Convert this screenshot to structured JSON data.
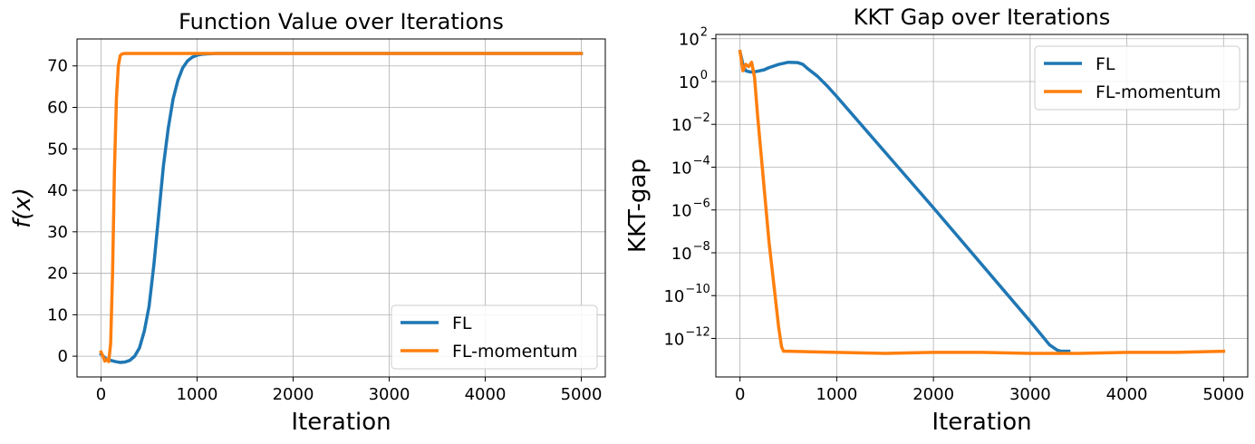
{
  "chart_data": [
    {
      "type": "line",
      "title": "Function Value over Iterations",
      "xlabel": "Iteration",
      "ylabel": "f(x)",
      "xlim": [
        -250,
        5250
      ],
      "ylim": [
        -5,
        76.5
      ],
      "xticks": [
        0,
        1000,
        2000,
        3000,
        4000,
        5000
      ],
      "xtick_labels": [
        "0",
        "1000",
        "2000",
        "3000",
        "4000",
        "5000"
      ],
      "yticks": [
        0,
        10,
        20,
        30,
        40,
        50,
        60,
        70
      ],
      "ytick_labels": [
        "0",
        "10",
        "20",
        "30",
        "40",
        "50",
        "60",
        "70"
      ],
      "grid": true,
      "legend_position": "lower right",
      "series": [
        {
          "name": "FL",
          "color": "#1f77b4",
          "x": [
            0,
            50,
            100,
            150,
            200,
            250,
            300,
            350,
            400,
            450,
            500,
            550,
            600,
            650,
            700,
            750,
            800,
            850,
            900,
            950,
            1000,
            1050,
            1100,
            1200,
            1300,
            1500,
            2000,
            3000,
            4000,
            5000
          ],
          "y": [
            0.5,
            -0.6,
            -1.0,
            -1.3,
            -1.5,
            -1.4,
            -1.0,
            0,
            2,
            6,
            12,
            22,
            34,
            46,
            55,
            62,
            66.5,
            69.5,
            71.2,
            72.1,
            72.6,
            72.8,
            72.9,
            73.0,
            73.0,
            73.0,
            73.0,
            73.0,
            73.0,
            73.0
          ]
        },
        {
          "name": "FL-momentum",
          "color": "#ff7f0e",
          "x": [
            0,
            20,
            40,
            60,
            80,
            100,
            120,
            140,
            160,
            180,
            200,
            220,
            250,
            300,
            500,
            1000,
            2000,
            3000,
            4000,
            5000
          ],
          "y": [
            1.0,
            0,
            -1.2,
            -0.8,
            -1.3,
            3,
            20,
            45,
            62,
            70,
            72.5,
            72.9,
            73.0,
            73.0,
            73.0,
            73.0,
            73.0,
            73.0,
            73.0,
            73.0
          ]
        }
      ]
    },
    {
      "type": "line",
      "title": "KKT Gap over Iterations",
      "xlabel": "Iteration",
      "ylabel": "KKT-gap",
      "yscale": "log",
      "xlim": [
        -250,
        5250
      ],
      "ylim_log10": [
        -13.8,
        2.2
      ],
      "xticks": [
        0,
        1000,
        2000,
        3000,
        4000,
        5000
      ],
      "xtick_labels": [
        "0",
        "1000",
        "2000",
        "3000",
        "4000",
        "5000"
      ],
      "yticks_log10": [
        2,
        0,
        -2,
        -4,
        -6,
        -8,
        -10,
        -12
      ],
      "ytick_labels": [
        "10",
        "10",
        "10",
        "10",
        "10",
        "10",
        "10",
        "10"
      ],
      "ytick_exponents": [
        "2",
        "0",
        "−2",
        "−4",
        "−6",
        "−8",
        "−10",
        "−12"
      ],
      "grid": true,
      "legend_position": "upper right",
      "series": [
        {
          "name": "FL",
          "color": "#1f77b4",
          "x": [
            0,
            30,
            60,
            100,
            150,
            200,
            250,
            300,
            400,
            500,
            600,
            650,
            700,
            800,
            900,
            1000,
            2000,
            3000,
            3200,
            3280,
            3320,
            3400
          ],
          "log10_y": [
            1.4,
            0.8,
            0.5,
            0.45,
            0.45,
            0.5,
            0.55,
            0.65,
            0.8,
            0.9,
            0.88,
            0.8,
            0.6,
            0.25,
            -0.2,
            -0.7,
            -5.9,
            -11.2,
            -12.3,
            -12.55,
            -12.6,
            -12.6
          ]
        },
        {
          "name": "FL-momentum",
          "color": "#ff7f0e",
          "x": [
            0,
            30,
            60,
            90,
            120,
            150,
            180,
            220,
            260,
            300,
            350,
            400,
            430,
            450,
            500,
            1000,
            1500,
            2000,
            2500,
            3000,
            3500,
            4000,
            4500,
            5000
          ],
          "log10_y": [
            1.4,
            0.5,
            0.8,
            0.7,
            0.9,
            0.2,
            -1.5,
            -3.5,
            -5.5,
            -7.5,
            -9.5,
            -11.5,
            -12.4,
            -12.6,
            -12.6,
            -12.65,
            -12.7,
            -12.65,
            -12.65,
            -12.7,
            -12.7,
            -12.65,
            -12.65,
            -12.6
          ]
        }
      ]
    }
  ]
}
